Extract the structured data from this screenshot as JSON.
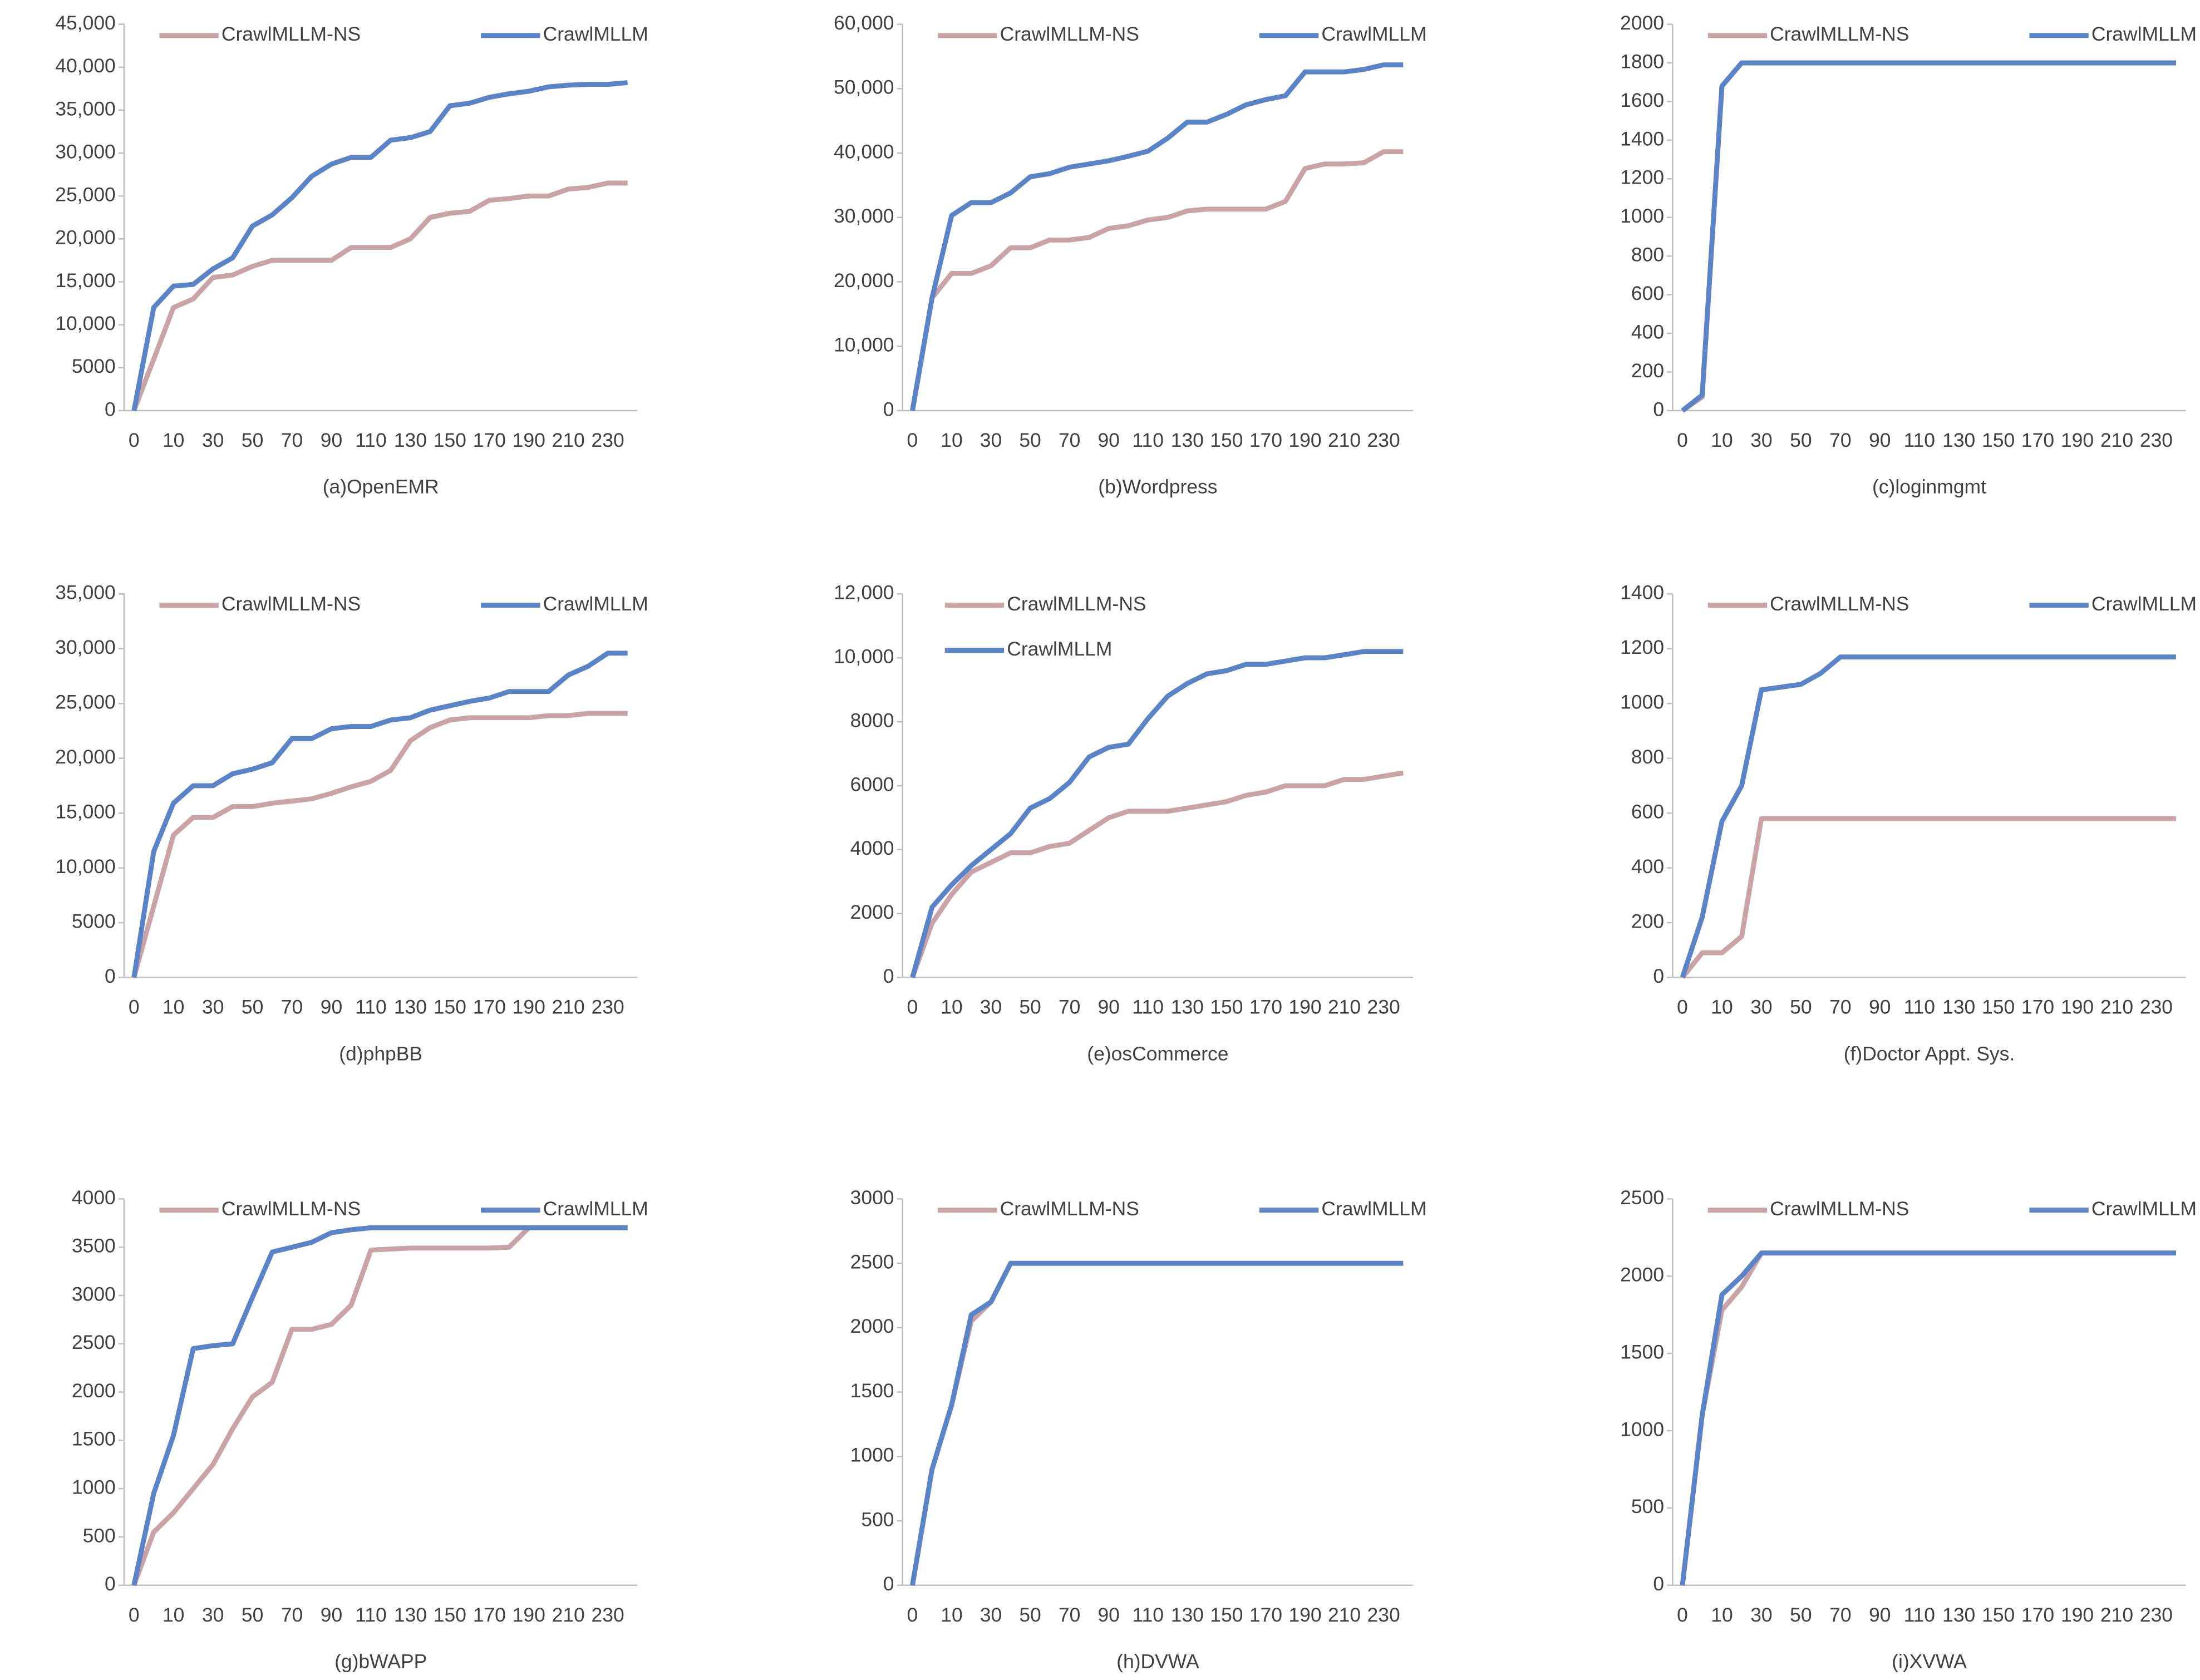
{
  "chart_data": [
    {
      "type": "line",
      "title": "(a)OpenEMR",
      "categories": [
        0,
        null,
        10,
        null,
        30,
        null,
        50,
        null,
        70,
        null,
        90,
        null,
        110,
        null,
        130,
        null,
        150,
        null,
        170,
        null,
        190,
        null,
        210,
        null,
        230,
        null
      ],
      "series": [
        {
          "name": "CrawlMLLM-NS",
          "color": "#c9a3a8",
          "values": [
            0,
            6000,
            12000,
            13000,
            15500,
            15800,
            16800,
            17500,
            17500,
            17500,
            17500,
            19000,
            19000,
            19000,
            20000,
            22500,
            23000,
            23200,
            24500,
            24700,
            25000,
            25000,
            25800,
            26000,
            26500,
            26500
          ]
        },
        {
          "name": "CrawlMLLM",
          "color": "#5b84c8",
          "values": [
            0,
            12000,
            14500,
            14700,
            16500,
            17800,
            21500,
            22800,
            24800,
            27300,
            28700,
            29500,
            29500,
            31500,
            31800,
            32500,
            35500,
            35800,
            36500,
            36900,
            37200,
            37700,
            37900,
            38000,
            38000,
            38200
          ]
        }
      ],
      "ylim": [
        0,
        45000
      ],
      "yticks": [
        0,
        5000,
        {
          "value": 10000,
          "label": "10,000"
        },
        {
          "value": 15000,
          "label": "15,000"
        },
        {
          "value": 20000,
          "label": "20,000"
        },
        {
          "value": 25000,
          "label": "25,000"
        },
        {
          "value": 30000,
          "label": "30,000"
        },
        {
          "value": 35000,
          "label": "35,000"
        },
        {
          "value": 40000,
          "label": "40,000"
        },
        {
          "value": 45000,
          "label": "45,000"
        }
      ],
      "legend": "top"
    },
    {
      "type": "line",
      "title": "(b)Wordpress",
      "categories": [
        0,
        null,
        10,
        null,
        30,
        null,
        50,
        null,
        70,
        null,
        90,
        null,
        110,
        null,
        130,
        null,
        150,
        null,
        170,
        null,
        190,
        null,
        210,
        null,
        230,
        null
      ],
      "series": [
        {
          "name": "CrawlMLLM-NS",
          "color": "#c9a3a8",
          "values": [
            0,
            17500,
            21300,
            21300,
            22500,
            25300,
            25300,
            26500,
            26500,
            26900,
            28300,
            28700,
            29600,
            30000,
            31000,
            31300,
            31300,
            31300,
            31300,
            32500,
            37600,
            38300,
            38300,
            38500,
            40200,
            40200
          ]
        },
        {
          "name": "CrawlMLLM",
          "color": "#5b84c8",
          "values": [
            0,
            17500,
            30300,
            32300,
            32300,
            33800,
            36300,
            36800,
            37800,
            38300,
            38800,
            39500,
            40300,
            42300,
            44800,
            44800,
            46000,
            47500,
            48300,
            48900,
            52600,
            52600,
            52600,
            53000,
            53700,
            53700
          ]
        }
      ],
      "ylim": [
        0,
        60000
      ],
      "yticks": [
        0,
        {
          "value": 10000,
          "label": "10,000"
        },
        {
          "value": 20000,
          "label": "20,000"
        },
        {
          "value": 30000,
          "label": "30,000"
        },
        {
          "value": 40000,
          "label": "40,000"
        },
        {
          "value": 50000,
          "label": "50,000"
        },
        {
          "value": 60000,
          "label": "60,000"
        }
      ],
      "legend": "top"
    },
    {
      "type": "line",
      "title": "(c)loginmgmt",
      "categories": [
        0,
        null,
        10,
        null,
        30,
        null,
        50,
        null,
        70,
        null,
        90,
        null,
        110,
        null,
        130,
        null,
        150,
        null,
        170,
        null,
        190,
        null,
        210,
        null,
        230,
        null
      ],
      "series": [
        {
          "name": "CrawlMLLM-NS",
          "color": "#c9a3a8",
          "values": [
            0,
            70,
            1680,
            1800,
            1800,
            1800,
            1800,
            1800,
            1800,
            1800,
            1800,
            1800,
            1800,
            1800,
            1800,
            1800,
            1800,
            1800,
            1800,
            1800,
            1800,
            1800,
            1800,
            1800,
            1800,
            1800
          ]
        },
        {
          "name": "CrawlMLLM",
          "color": "#5b84c8",
          "values": [
            0,
            80,
            1680,
            1800,
            1800,
            1800,
            1800,
            1800,
            1800,
            1800,
            1800,
            1800,
            1800,
            1800,
            1800,
            1800,
            1800,
            1800,
            1800,
            1800,
            1800,
            1800,
            1800,
            1800,
            1800,
            1800
          ]
        }
      ],
      "ylim": [
        0,
        2000
      ],
      "yticks": [
        0,
        200,
        400,
        600,
        800,
        1000,
        1200,
        1400,
        1600,
        1800,
        2000
      ],
      "legend": "top"
    },
    {
      "type": "line",
      "title": "(d)phpBB",
      "categories": [
        0,
        null,
        10,
        null,
        30,
        null,
        50,
        null,
        70,
        null,
        90,
        null,
        110,
        null,
        130,
        null,
        150,
        null,
        170,
        null,
        190,
        null,
        210,
        null,
        230,
        null
      ],
      "series": [
        {
          "name": "CrawlMLLM-NS",
          "color": "#c9a3a8",
          "values": [
            0,
            6500,
            13000,
            14600,
            14600,
            15600,
            15600,
            15900,
            16100,
            16300,
            16800,
            17400,
            17900,
            18900,
            21600,
            22800,
            23500,
            23700,
            23700,
            23700,
            23700,
            23900,
            23900,
            24100,
            24100,
            24100
          ]
        },
        {
          "name": "CrawlMLLM",
          "color": "#5b84c8",
          "values": [
            0,
            11500,
            15900,
            17500,
            17500,
            18600,
            19000,
            19600,
            21800,
            21800,
            22700,
            22900,
            22900,
            23500,
            23700,
            24400,
            24800,
            25200,
            25500,
            26100,
            26100,
            26100,
            27600,
            28400,
            29600,
            29600
          ]
        }
      ],
      "ylim": [
        0,
        35000
      ],
      "yticks": [
        0,
        5000,
        {
          "value": 10000,
          "label": "10,000"
        },
        {
          "value": 15000,
          "label": "15,000"
        },
        {
          "value": 20000,
          "label": "20,000"
        },
        {
          "value": 25000,
          "label": "25,000"
        },
        {
          "value": 30000,
          "label": "30,000"
        },
        {
          "value": 35000,
          "label": "35,000"
        }
      ],
      "legend": "top"
    },
    {
      "type": "line",
      "title": "(e)osCommerce",
      "categories": [
        0,
        null,
        10,
        null,
        30,
        null,
        50,
        null,
        70,
        null,
        90,
        null,
        110,
        null,
        130,
        null,
        150,
        null,
        170,
        null,
        190,
        null,
        210,
        null,
        230,
        null
      ],
      "series": [
        {
          "name": "CrawlMLLM-NS",
          "color": "#c9a3a8",
          "values": [
            0,
            1700,
            2600,
            3300,
            3600,
            3900,
            3900,
            4100,
            4200,
            4600,
            5000,
            5200,
            5200,
            5200,
            5300,
            5400,
            5500,
            5700,
            5800,
            6000,
            6000,
            6000,
            6200,
            6200,
            6300,
            6400
          ]
        },
        {
          "name": "CrawlMLLM",
          "color": "#5b84c8",
          "values": [
            0,
            2200,
            2900,
            3500,
            4000,
            4500,
            5300,
            5600,
            6100,
            6900,
            7200,
            7300,
            8100,
            8800,
            9200,
            9500,
            9600,
            9800,
            9800,
            9900,
            10000,
            10000,
            10100,
            10200,
            10200,
            10200
          ]
        }
      ],
      "ylim": [
        0,
        12000
      ],
      "yticks": [
        0,
        2000,
        4000,
        6000,
        8000,
        {
          "value": 10000,
          "label": "10,000"
        },
        {
          "value": 12000,
          "label": "12,000"
        }
      ],
      "legend": "upper left"
    },
    {
      "type": "line",
      "title": "(f)Doctor Appt. Sys.",
      "categories": [
        0,
        null,
        10,
        null,
        30,
        null,
        50,
        null,
        70,
        null,
        90,
        null,
        110,
        null,
        130,
        null,
        150,
        null,
        170,
        null,
        190,
        null,
        210,
        null,
        230,
        null
      ],
      "series": [
        {
          "name": "CrawlMLLM-NS",
          "color": "#c9a3a8",
          "values": [
            0,
            90,
            90,
            150,
            580,
            580,
            580,
            580,
            580,
            580,
            580,
            580,
            580,
            580,
            580,
            580,
            580,
            580,
            580,
            580,
            580,
            580,
            580,
            580,
            580,
            580
          ]
        },
        {
          "name": "CrawlMLLM",
          "color": "#5b84c8",
          "values": [
            0,
            220,
            570,
            700,
            1050,
            1060,
            1070,
            1110,
            1170,
            1170,
            1170,
            1170,
            1170,
            1170,
            1170,
            1170,
            1170,
            1170,
            1170,
            1170,
            1170,
            1170,
            1170,
            1170,
            1170,
            1170
          ]
        }
      ],
      "ylim": [
        0,
        1400
      ],
      "yticks": [
        0,
        200,
        400,
        600,
        800,
        1000,
        1200,
        1400
      ],
      "legend": "top"
    },
    {
      "type": "line",
      "title": "(g)bWAPP",
      "categories": [
        0,
        null,
        10,
        null,
        30,
        null,
        50,
        null,
        70,
        null,
        90,
        null,
        110,
        null,
        130,
        null,
        150,
        null,
        170,
        null,
        190,
        null,
        210,
        null,
        230,
        null
      ],
      "series": [
        {
          "name": "CrawlMLLM-NS",
          "color": "#c9a3a8",
          "values": [
            0,
            550,
            750,
            1000,
            1250,
            1620,
            1950,
            2100,
            2650,
            2650,
            2700,
            2900,
            3470,
            3480,
            3490,
            3490,
            3490,
            3490,
            3490,
            3500,
            3700,
            3700,
            3700,
            3700,
            3700,
            3700
          ]
        },
        {
          "name": "CrawlMLLM",
          "color": "#5b84c8",
          "values": [
            0,
            950,
            1550,
            2450,
            2480,
            2500,
            2980,
            3450,
            3500,
            3550,
            3650,
            3680,
            3700,
            3700,
            3700,
            3700,
            3700,
            3700,
            3700,
            3700,
            3700,
            3700,
            3700,
            3700,
            3700,
            3700
          ]
        }
      ],
      "ylim": [
        0,
        4000
      ],
      "yticks": [
        0,
        500,
        1000,
        1500,
        2000,
        2500,
        3000,
        3500,
        4000
      ],
      "legend": "top"
    },
    {
      "type": "line",
      "title": "(h)DVWA",
      "categories": [
        0,
        null,
        10,
        null,
        30,
        null,
        50,
        null,
        70,
        null,
        90,
        null,
        110,
        null,
        130,
        null,
        150,
        null,
        170,
        null,
        190,
        null,
        210,
        null,
        230,
        null
      ],
      "series": [
        {
          "name": "CrawlMLLM-NS",
          "color": "#c9a3a8",
          "values": [
            0,
            900,
            1400,
            2050,
            2200,
            2500,
            2500,
            2500,
            2500,
            2500,
            2500,
            2500,
            2500,
            2500,
            2500,
            2500,
            2500,
            2500,
            2500,
            2500,
            2500,
            2500,
            2500,
            2500,
            2500,
            2500
          ]
        },
        {
          "name": "CrawlMLLM",
          "color": "#5b84c8",
          "values": [
            0,
            900,
            1400,
            2100,
            2200,
            2500,
            2500,
            2500,
            2500,
            2500,
            2500,
            2500,
            2500,
            2500,
            2500,
            2500,
            2500,
            2500,
            2500,
            2500,
            2500,
            2500,
            2500,
            2500,
            2500,
            2500
          ]
        }
      ],
      "ylim": [
        0,
        3000
      ],
      "yticks": [
        0,
        500,
        1000,
        1500,
        2000,
        2500,
        3000
      ],
      "legend": "top"
    },
    {
      "type": "line",
      "title": "(i)XVWA",
      "categories": [
        0,
        null,
        10,
        null,
        30,
        null,
        50,
        null,
        70,
        null,
        90,
        null,
        110,
        null,
        130,
        null,
        150,
        null,
        170,
        null,
        190,
        null,
        210,
        null,
        230,
        null
      ],
      "series": [
        {
          "name": "CrawlMLLM-NS",
          "color": "#c9a3a8",
          "values": [
            0,
            1100,
            1780,
            1930,
            2150,
            2150,
            2150,
            2150,
            2150,
            2150,
            2150,
            2150,
            2150,
            2150,
            2150,
            2150,
            2150,
            2150,
            2150,
            2150,
            2150,
            2150,
            2150,
            2150,
            2150,
            2150
          ]
        },
        {
          "name": "CrawlMLLM",
          "color": "#5b84c8",
          "values": [
            0,
            1100,
            1880,
            2000,
            2150,
            2150,
            2150,
            2150,
            2150,
            2150,
            2150,
            2150,
            2150,
            2150,
            2150,
            2150,
            2150,
            2150,
            2150,
            2150,
            2150,
            2150,
            2150,
            2150,
            2150,
            2150
          ]
        }
      ],
      "ylim": [
        0,
        2500
      ],
      "yticks": [
        0,
        500,
        1000,
        1500,
        2000,
        2500
      ],
      "legend": "top"
    }
  ]
}
